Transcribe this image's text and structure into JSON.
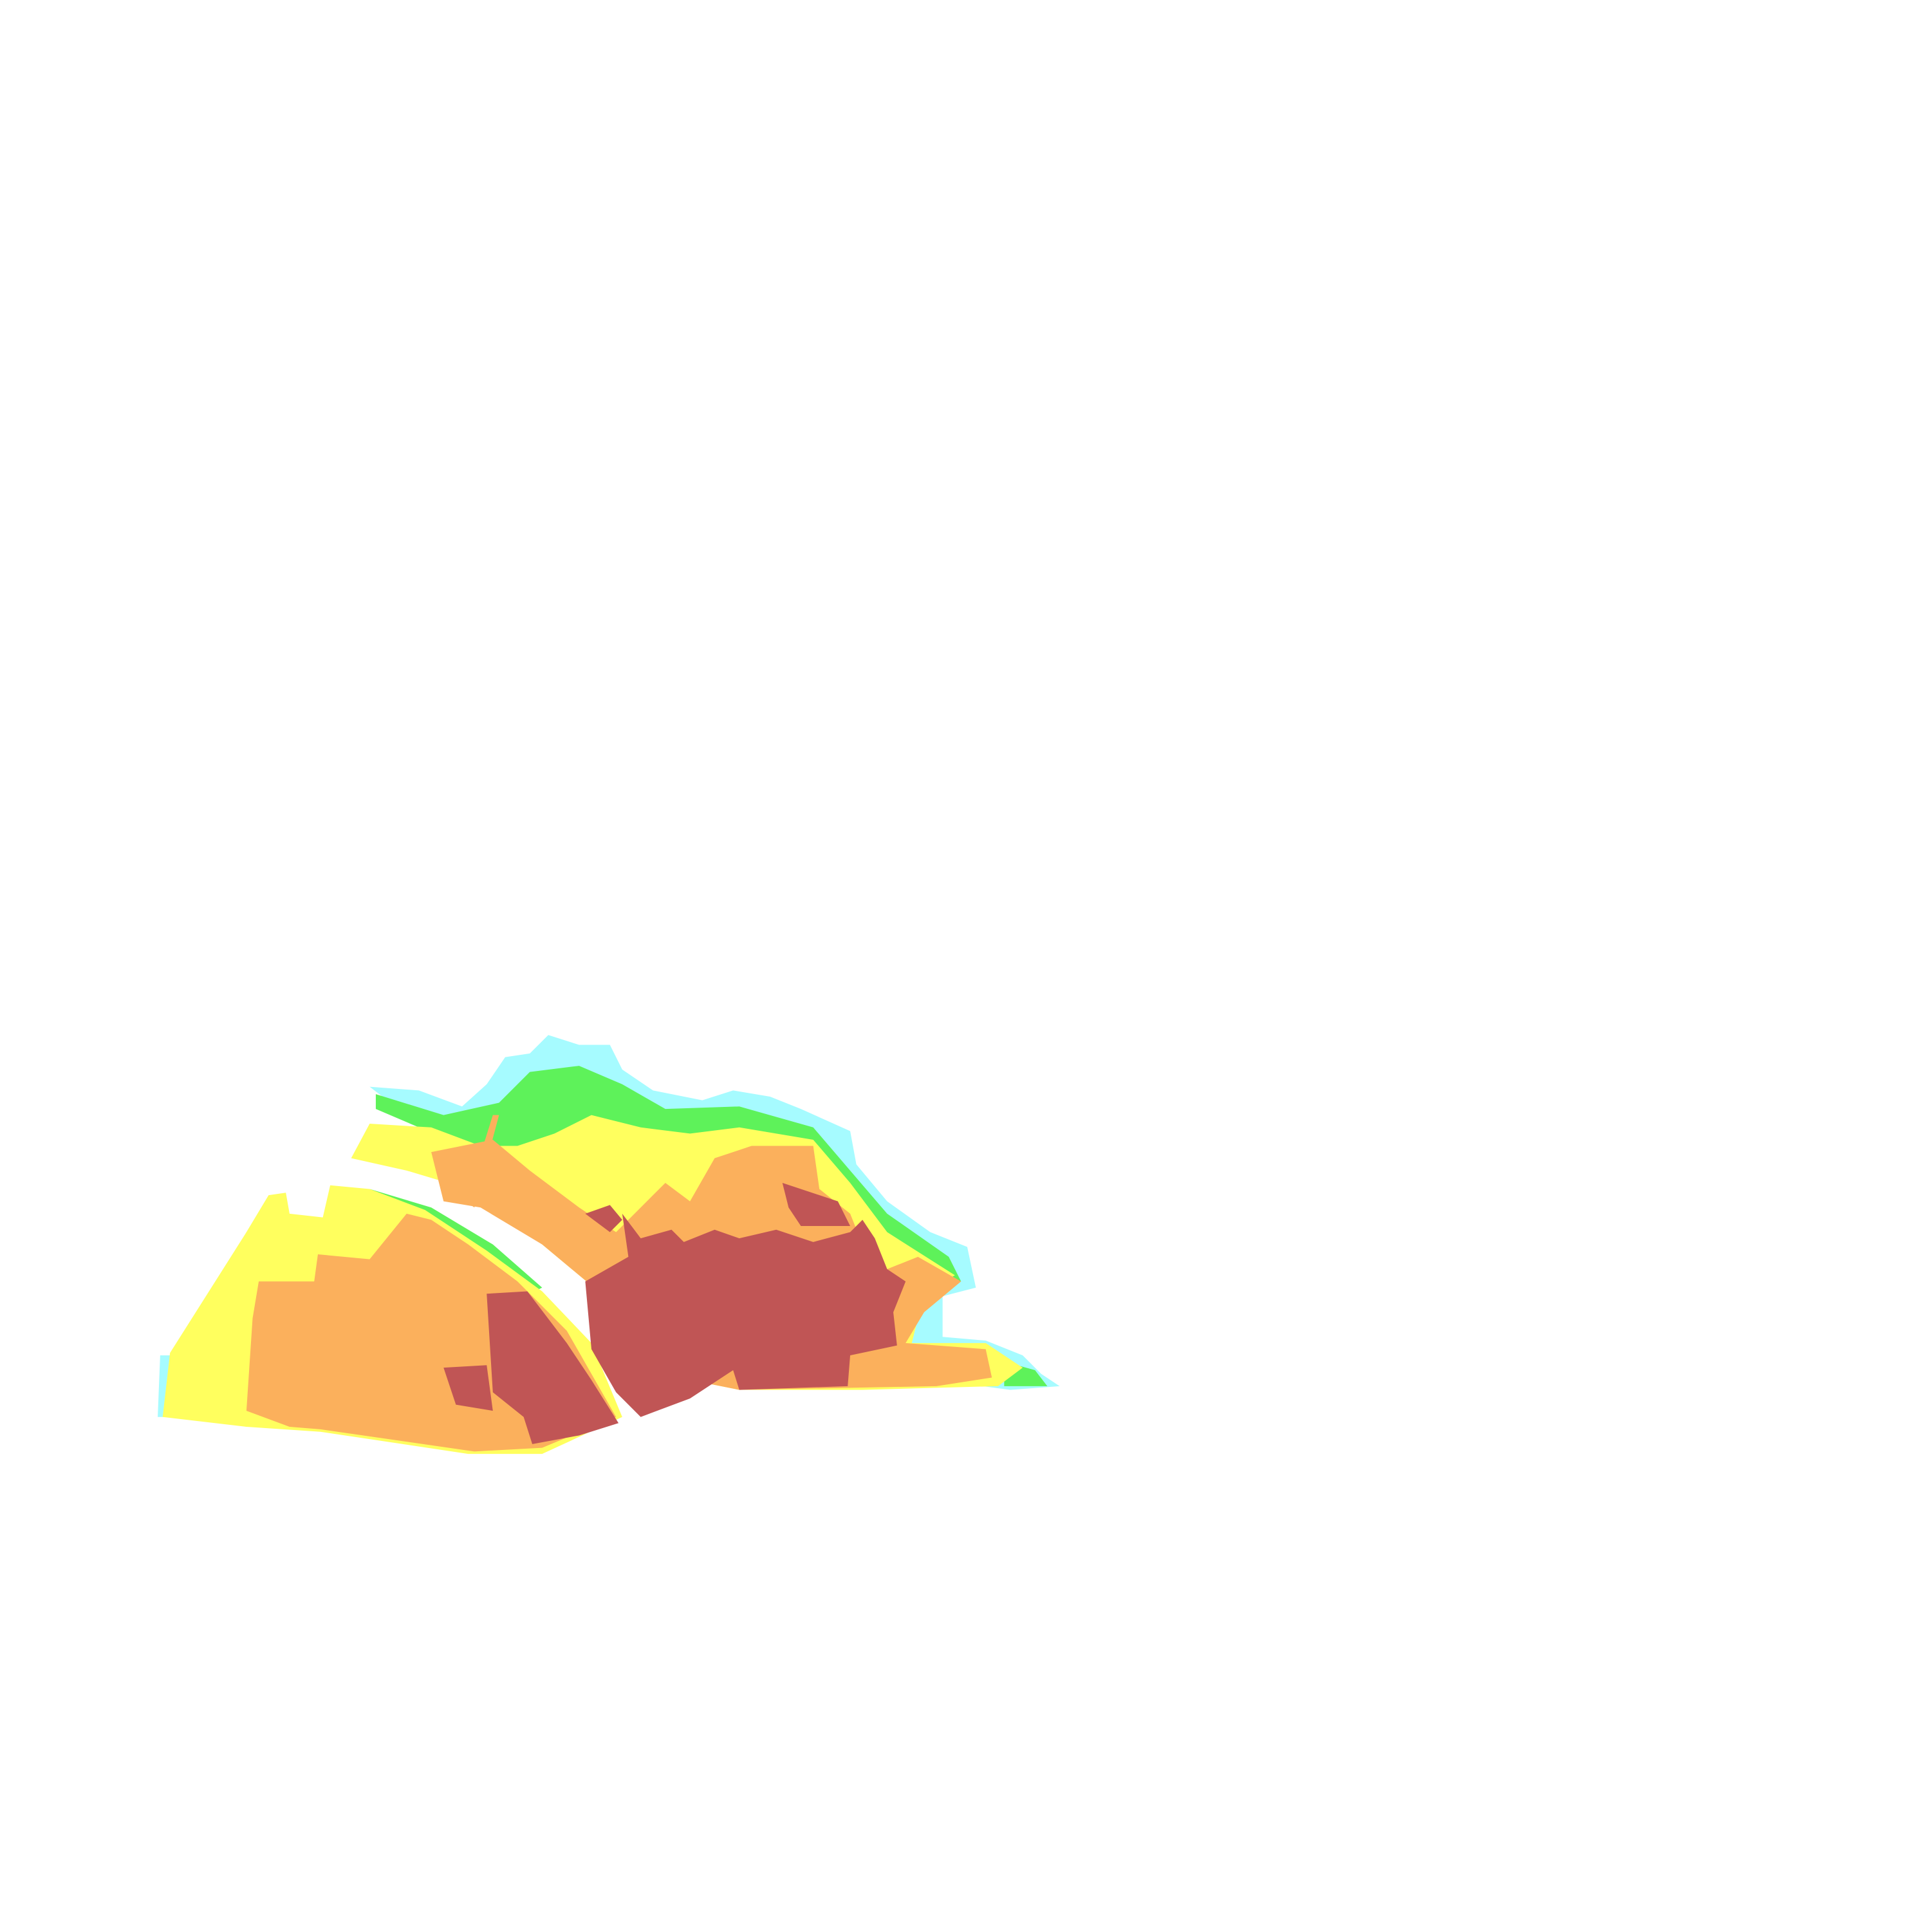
{
  "map": {
    "background": "#ffffff",
    "class_colors": {
      "water_edge": "#a6fbff",
      "low": "#5ef25a",
      "medium": "#ffff5e",
      "high": "#fbb05c",
      "very_high": "#c05555"
    }
  }
}
